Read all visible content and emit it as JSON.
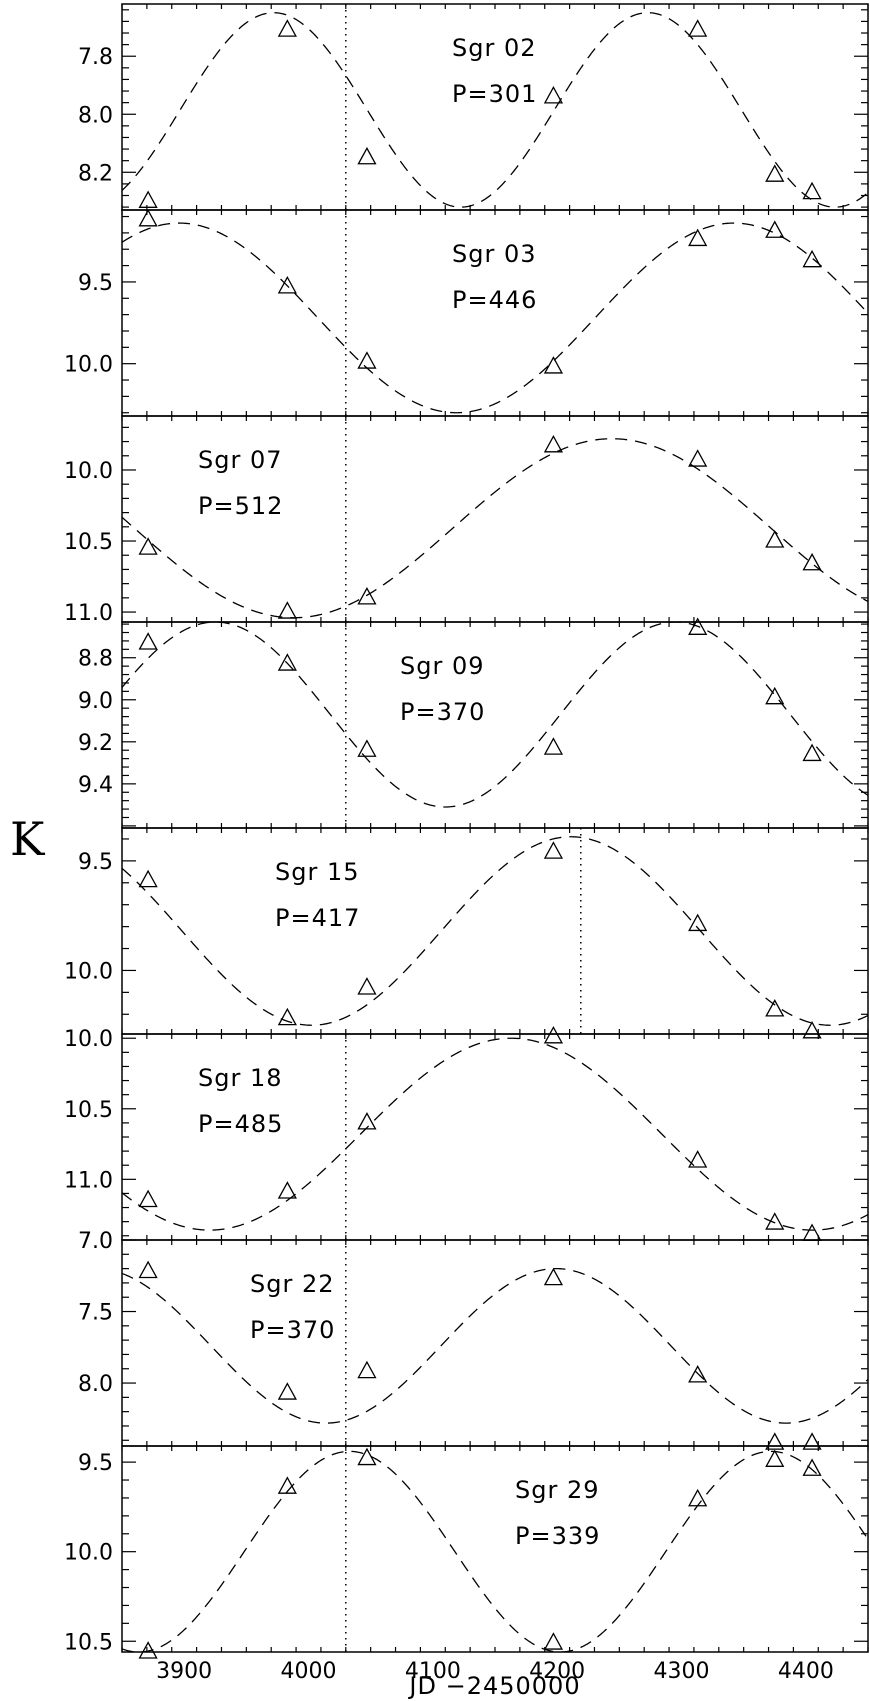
{
  "chart_data": {
    "type": "scatter",
    "xlabel": "JD −2450000",
    "ylabel": "K",
    "xlim": [
      3850,
      4450
    ],
    "x_ticks": [
      3900,
      4000,
      4100,
      4200,
      4300,
      4400
    ],
    "x_tick_labels": [
      "3900",
      "4000",
      "4100",
      "4200",
      "4300",
      "4400"
    ],
    "y_inverted": true,
    "marker": "open-triangle",
    "fit_line_style": "dashed",
    "marker_line_style": "dotted",
    "panels": [
      {
        "name": "Sgr 02",
        "period_label": "P=301",
        "period": 301,
        "ylim": [
          8.33,
          7.62
        ],
        "y_ticks": [
          7.8,
          8.0,
          8.2
        ],
        "y_tick_labels": [
          "7.8",
          "8.0",
          "8.2"
        ],
        "x": [
          3871,
          3983,
          4047,
          4197,
          4313,
          4375,
          4405
        ],
        "y": [
          8.3,
          7.71,
          8.15,
          7.94,
          7.71,
          8.21,
          8.27
        ],
        "fit": {
          "mean": 7.985,
          "amplitude": 0.335,
          "max_jd": 3972
        },
        "vline": 4030,
        "label_pos": "top-center"
      },
      {
        "name": "Sgr 03",
        "period_label": "P=446",
        "period": 446,
        "ylim": [
          10.32,
          9.06
        ],
        "y_ticks": [
          9.5,
          10.0
        ],
        "y_tick_labels": [
          "9.5",
          "10.0"
        ],
        "x": [
          3871,
          3983,
          4047,
          4197,
          4313,
          4375,
          4405
        ],
        "y": [
          9.12,
          9.53,
          9.99,
          10.02,
          9.24,
          9.19,
          9.37
        ],
        "fit": {
          "mean": 9.72,
          "amplitude": 0.58,
          "max_jd": 3896
        },
        "vline": 4030,
        "label_pos": "top-center"
      },
      {
        "name": "Sgr 07",
        "period_label": "P=512",
        "period": 512,
        "ylim": [
          11.07,
          9.62
        ],
        "y_ticks": [
          10.0,
          10.5,
          11.0
        ],
        "y_tick_labels": [
          "10.0",
          "10.5",
          "11.0"
        ],
        "x": [
          3871,
          3983,
          4047,
          4197,
          4313,
          4375,
          4405
        ],
        "y": [
          10.55,
          11.0,
          10.9,
          9.83,
          9.93,
          10.5,
          10.66
        ],
        "fit": {
          "mean": 10.41,
          "amplitude": 0.63,
          "max_jd": 4244
        },
        "vline": 4030,
        "label_pos": "top-left"
      },
      {
        "name": "Sgr 09",
        "period_label": "P=370",
        "period": 370,
        "ylim": [
          9.61,
          8.63
        ],
        "y_ticks": [
          8.8,
          9.0,
          9.2,
          9.4
        ],
        "y_tick_labels": [
          "8.8",
          "9.0",
          "9.2",
          "9.4"
        ],
        "x": [
          3871,
          3983,
          4047,
          4197,
          4313,
          4375,
          4405
        ],
        "y": [
          8.73,
          8.83,
          9.24,
          9.23,
          8.66,
          8.99,
          9.26
        ],
        "fit": {
          "mean": 9.07,
          "amplitude": 0.44,
          "max_jd": 3925
        },
        "vline": 4030,
        "label_pos": "top-center"
      },
      {
        "name": "Sgr 15",
        "period_label": "P=417",
        "period": 417,
        "ylim": [
          10.29,
          9.35
        ],
        "y_ticks": [
          9.5,
          10.0
        ],
        "y_tick_labels": [
          "9.5",
          "10.0"
        ],
        "x": [
          3871,
          3983,
          4047,
          4197,
          4313,
          4375,
          4405
        ],
        "y": [
          9.59,
          10.22,
          10.08,
          9.46,
          9.79,
          10.18,
          10.28
        ],
        "fit": {
          "mean": 9.82,
          "amplitude": 0.43,
          "max_jd": 4211
        },
        "vline": 4219,
        "label_pos": "top-left"
      },
      {
        "name": "Sgr 18",
        "period_label": "P=485",
        "period": 485,
        "ylim": [
          11.43,
          9.97
        ],
        "y_ticks": [
          10.0,
          10.5,
          11.0
        ],
        "y_tick_labels": [
          "10.0",
          "10.5",
          "11.0"
        ],
        "x": [
          3871,
          3983,
          4047,
          4197,
          4313,
          4375,
          4405
        ],
        "y": [
          11.15,
          11.09,
          10.6,
          9.99,
          10.87,
          11.31,
          11.39
        ],
        "fit": {
          "mean": 10.68,
          "amplitude": 0.68,
          "max_jd": 4163
        },
        "vline": 4030,
        "label_pos": "top-left"
      },
      {
        "name": "Sgr 22",
        "period_label": "P=370",
        "period": 370,
        "ylim": [
          8.44,
          7.0
        ],
        "y_ticks": [
          7.0,
          7.5,
          8.0
        ],
        "y_tick_labels": [
          "7.0",
          "7.5",
          "8.0"
        ],
        "x": [
          3871,
          3983,
          4047,
          4197,
          4313,
          4375,
          4405
        ],
        "y": [
          7.22,
          8.07,
          7.92,
          7.27,
          7.95,
          8.42,
          8.42
        ],
        "fit": {
          "mean": 7.74,
          "amplitude": 0.54,
          "max_jd": 4199
        },
        "vline": 4030,
        "label_pos": "top-left"
      },
      {
        "name": "Sgr 29",
        "period_label": "P=339",
        "period": 339,
        "ylim": [
          10.56,
          9.41
        ],
        "y_ticks": [
          9.5,
          10.0,
          10.5
        ],
        "y_tick_labels": [
          "9.5",
          "10.0",
          "10.5"
        ],
        "x": [
          3871,
          3983,
          4047,
          4197,
          4313,
          4375,
          4405
        ],
        "y": [
          10.56,
          9.64,
          9.48,
          10.51,
          9.71,
          9.49,
          9.54
        ],
        "fit": {
          "mean": 10.0,
          "amplitude": 0.56,
          "max_jd": 4033
        },
        "vline": 4030,
        "label_pos": "top-right"
      }
    ]
  }
}
